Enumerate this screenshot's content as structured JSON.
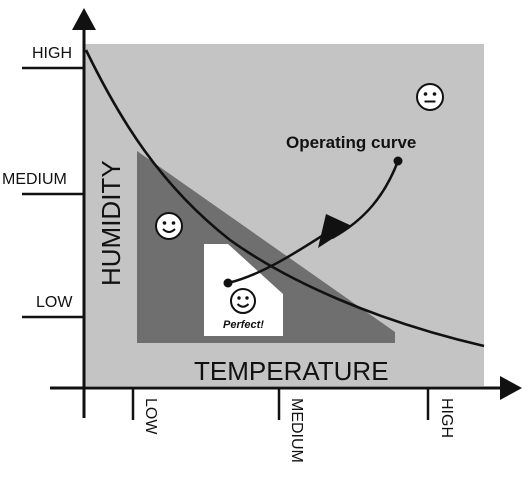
{
  "diagram": {
    "y_axis": {
      "title": "HUMIDITY",
      "ticks": [
        "HIGH",
        "MEDIUM",
        "LOW"
      ]
    },
    "x_axis": {
      "title": "TEMPERATURE",
      "ticks": [
        "LOW",
        "MEDIUM",
        "HIGH"
      ]
    },
    "curve_label": "Operating curve",
    "perfect_label": "Perfect!",
    "icons": {
      "neutral": "neutral-face-icon",
      "happy": "smiley-face-icon",
      "perfect": "smiley-face-icon"
    },
    "colors": {
      "outer_zone": "#c4c4c4",
      "comfort_zone": "#6f6f6f",
      "perfect_zone": "#ffffff",
      "lines": "#111111"
    }
  }
}
